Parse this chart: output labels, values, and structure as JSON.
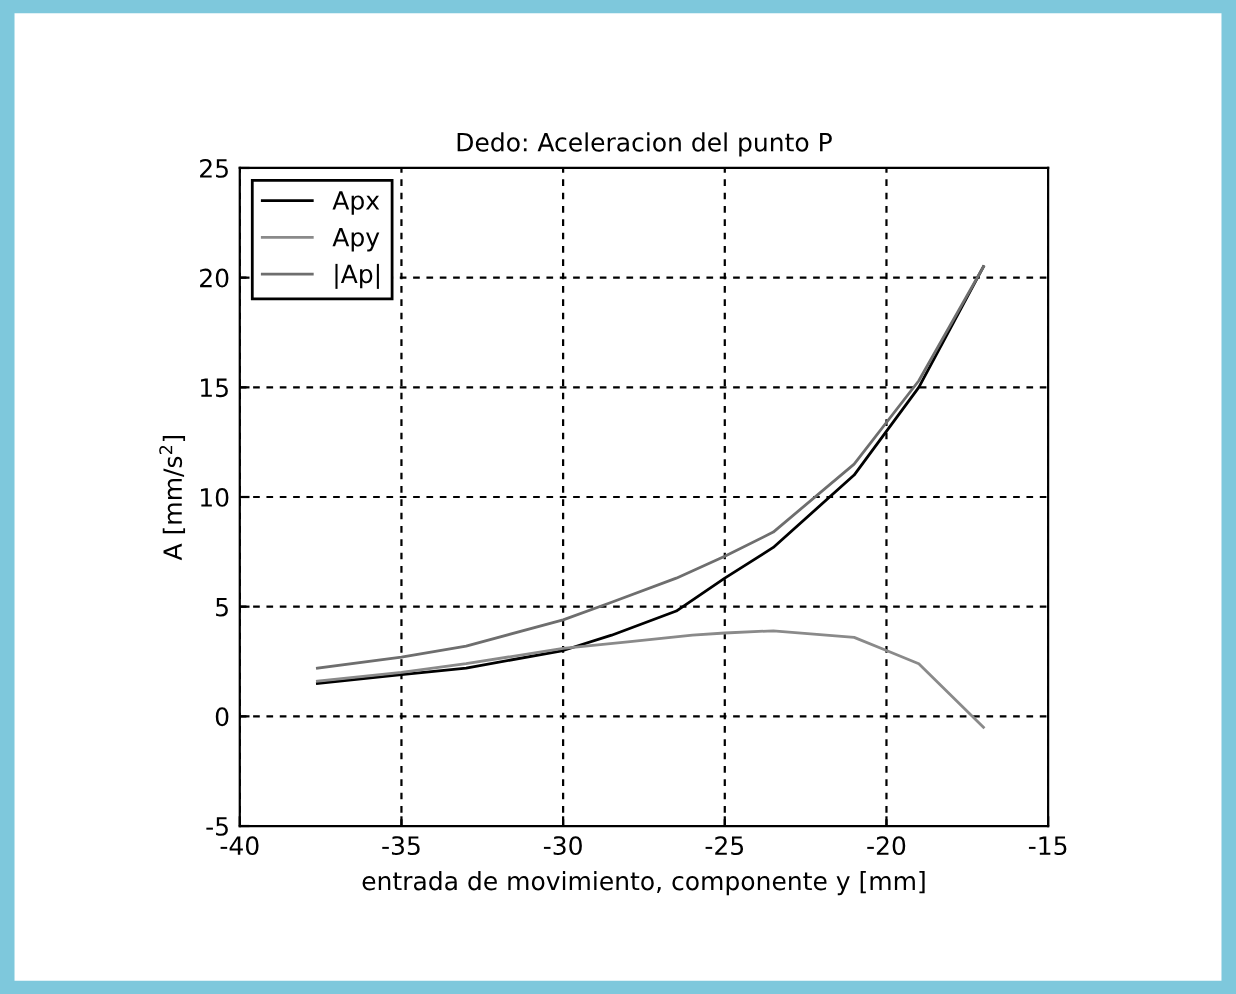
{
  "chart_data": {
    "type": "line",
    "title": "Dedo: Aceleracion del punto P",
    "xlabel": "entrada de movimiento, componente y [mm]",
    "ylabel": "A [mm/s$^{2}$]",
    "xlim": [
      -40,
      -15
    ],
    "xticks": [
      -40,
      -35,
      -30,
      -25,
      -20,
      -15
    ],
    "ylim": [
      -5,
      25
    ],
    "yticks": [
      -5,
      0,
      5,
      10,
      15,
      20,
      25
    ],
    "grid": true,
    "legend": "top left",
    "line_style": "solid",
    "series": [
      {
        "name": "Apx",
        "color": "#000000",
        "x": [
          -37.6,
          -35,
          -33,
          -30,
          -28.5,
          -26.5,
          -25,
          -23.5,
          -21,
          -19,
          -17
        ],
        "values": [
          1.5,
          1.9,
          2.2,
          3.0,
          3.7,
          4.8,
          6.3,
          7.7,
          11,
          15,
          20.5
        ]
      },
      {
        "name": "Apy",
        "color": "#8a8a8a",
        "x": [
          -37.6,
          -35,
          -33,
          -30,
          -28,
          -26,
          -25,
          -23.5,
          -21,
          -20,
          -19,
          -17
        ],
        "values": [
          1.6,
          2.0,
          2.4,
          3.1,
          3.4,
          3.7,
          3.8,
          3.9,
          3.6,
          3.0,
          2.4,
          -0.5
        ]
      },
      {
        "name": "|Ap|",
        "color": "#6e6e6e",
        "x": [
          -37.6,
          -35,
          -33,
          -30,
          -28.5,
          -26.5,
          -25,
          -23.5,
          -21,
          -19,
          -17
        ],
        "values": [
          2.2,
          2.7,
          3.2,
          4.4,
          5.2,
          6.3,
          7.3,
          8.4,
          11.5,
          15.3,
          20.5
        ]
      }
    ]
  }
}
